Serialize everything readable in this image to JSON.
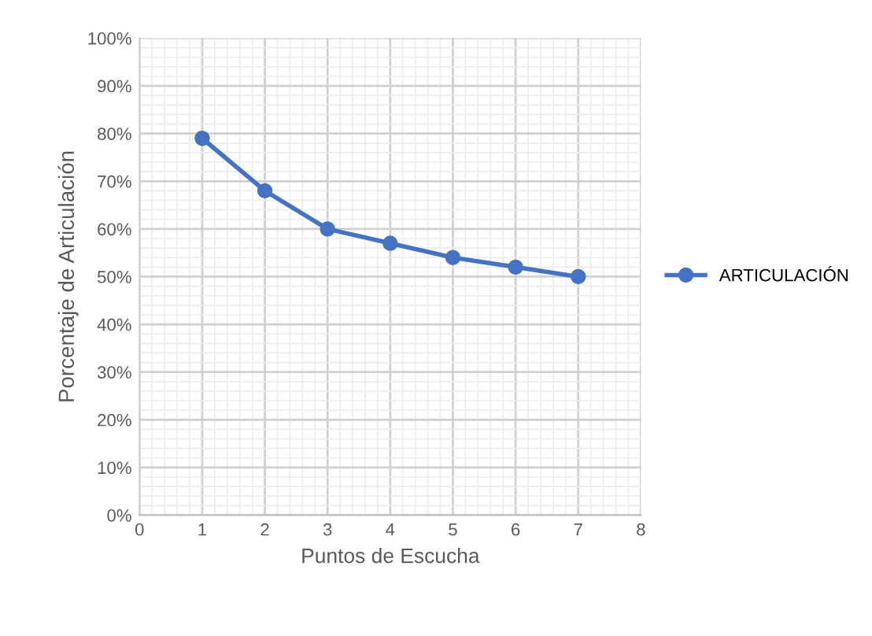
{
  "chart_data": {
    "type": "line",
    "xlabel": "Puntos de Escucha",
    "ylabel": "Porcentaje de Articulación",
    "x": [
      1,
      2,
      3,
      4,
      5,
      6,
      7
    ],
    "series": [
      {
        "name": "ARTICULACIÓN",
        "color": "#4472c4",
        "values": [
          79,
          68,
          60,
          57,
          54,
          52,
          50
        ]
      }
    ],
    "xlim": [
      0,
      8
    ],
    "xticks": [
      0,
      1,
      2,
      3,
      4,
      5,
      6,
      7,
      8
    ],
    "ylim": [
      0,
      100
    ],
    "yticks": [
      {
        "value": 0,
        "label": "0%"
      },
      {
        "value": 10,
        "label": "10%"
      },
      {
        "value": 20,
        "label": "20%"
      },
      {
        "value": 30,
        "label": "30%"
      },
      {
        "value": 40,
        "label": "40%"
      },
      {
        "value": 50,
        "label": "50%"
      },
      {
        "value": 60,
        "label": "60%"
      },
      {
        "value": 70,
        "label": "70%"
      },
      {
        "value": 80,
        "label": "80%"
      },
      {
        "value": 90,
        "label": "90%"
      },
      {
        "value": 100,
        "label": "100%"
      }
    ],
    "grid": true,
    "legend": "right",
    "marker": "circle",
    "line_style": "solid"
  }
}
